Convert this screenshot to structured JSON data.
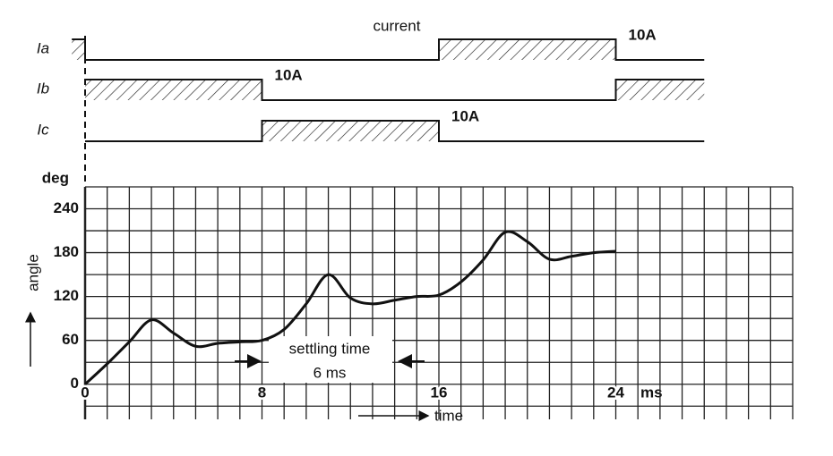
{
  "chart_data": [
    {
      "type": "step",
      "title": "current",
      "series": [
        {
          "name": "Ia",
          "x": [
            -0.6,
            0,
            16,
            24,
            28
          ],
          "values": [
            10,
            0,
            10,
            0,
            0
          ],
          "label": "10A"
        },
        {
          "name": "Ib",
          "x": [
            0,
            8,
            24,
            28
          ],
          "values": [
            10,
            0,
            10,
            10
          ],
          "label": "10A"
        },
        {
          "name": "Ic",
          "x": [
            0,
            8,
            16,
            28
          ],
          "values": [
            0,
            10,
            0,
            0
          ],
          "label": "10A"
        }
      ],
      "ylim": [
        0,
        10
      ],
      "color": "#111111"
    },
    {
      "type": "line",
      "xlabel": "time",
      "ylabel": "angle",
      "y_unit": "deg",
      "x_unit": "ms",
      "x": [
        0,
        1,
        2,
        3,
        4,
        5,
        6,
        7,
        8,
        9,
        10,
        11,
        12,
        13,
        14,
        15,
        16,
        17,
        18,
        19,
        20,
        21,
        22,
        23,
        24
      ],
      "values": [
        0,
        28,
        58,
        88,
        70,
        52,
        56,
        58,
        60,
        75,
        110,
        150,
        118,
        110,
        115,
        120,
        122,
        140,
        170,
        208,
        195,
        171,
        175,
        180,
        182
      ],
      "xlim": [
        0,
        32
      ],
      "ylim": [
        -48,
        270
      ],
      "xticks": [
        0,
        8,
        16,
        24
      ],
      "yticks": [
        0,
        60,
        120,
        180,
        240
      ],
      "x_grid_step": 1,
      "y_grid_step": 30,
      "grid": true,
      "color": "#111111",
      "annotation": {
        "text": "settling time",
        "detail": "6 ms"
      }
    }
  ]
}
